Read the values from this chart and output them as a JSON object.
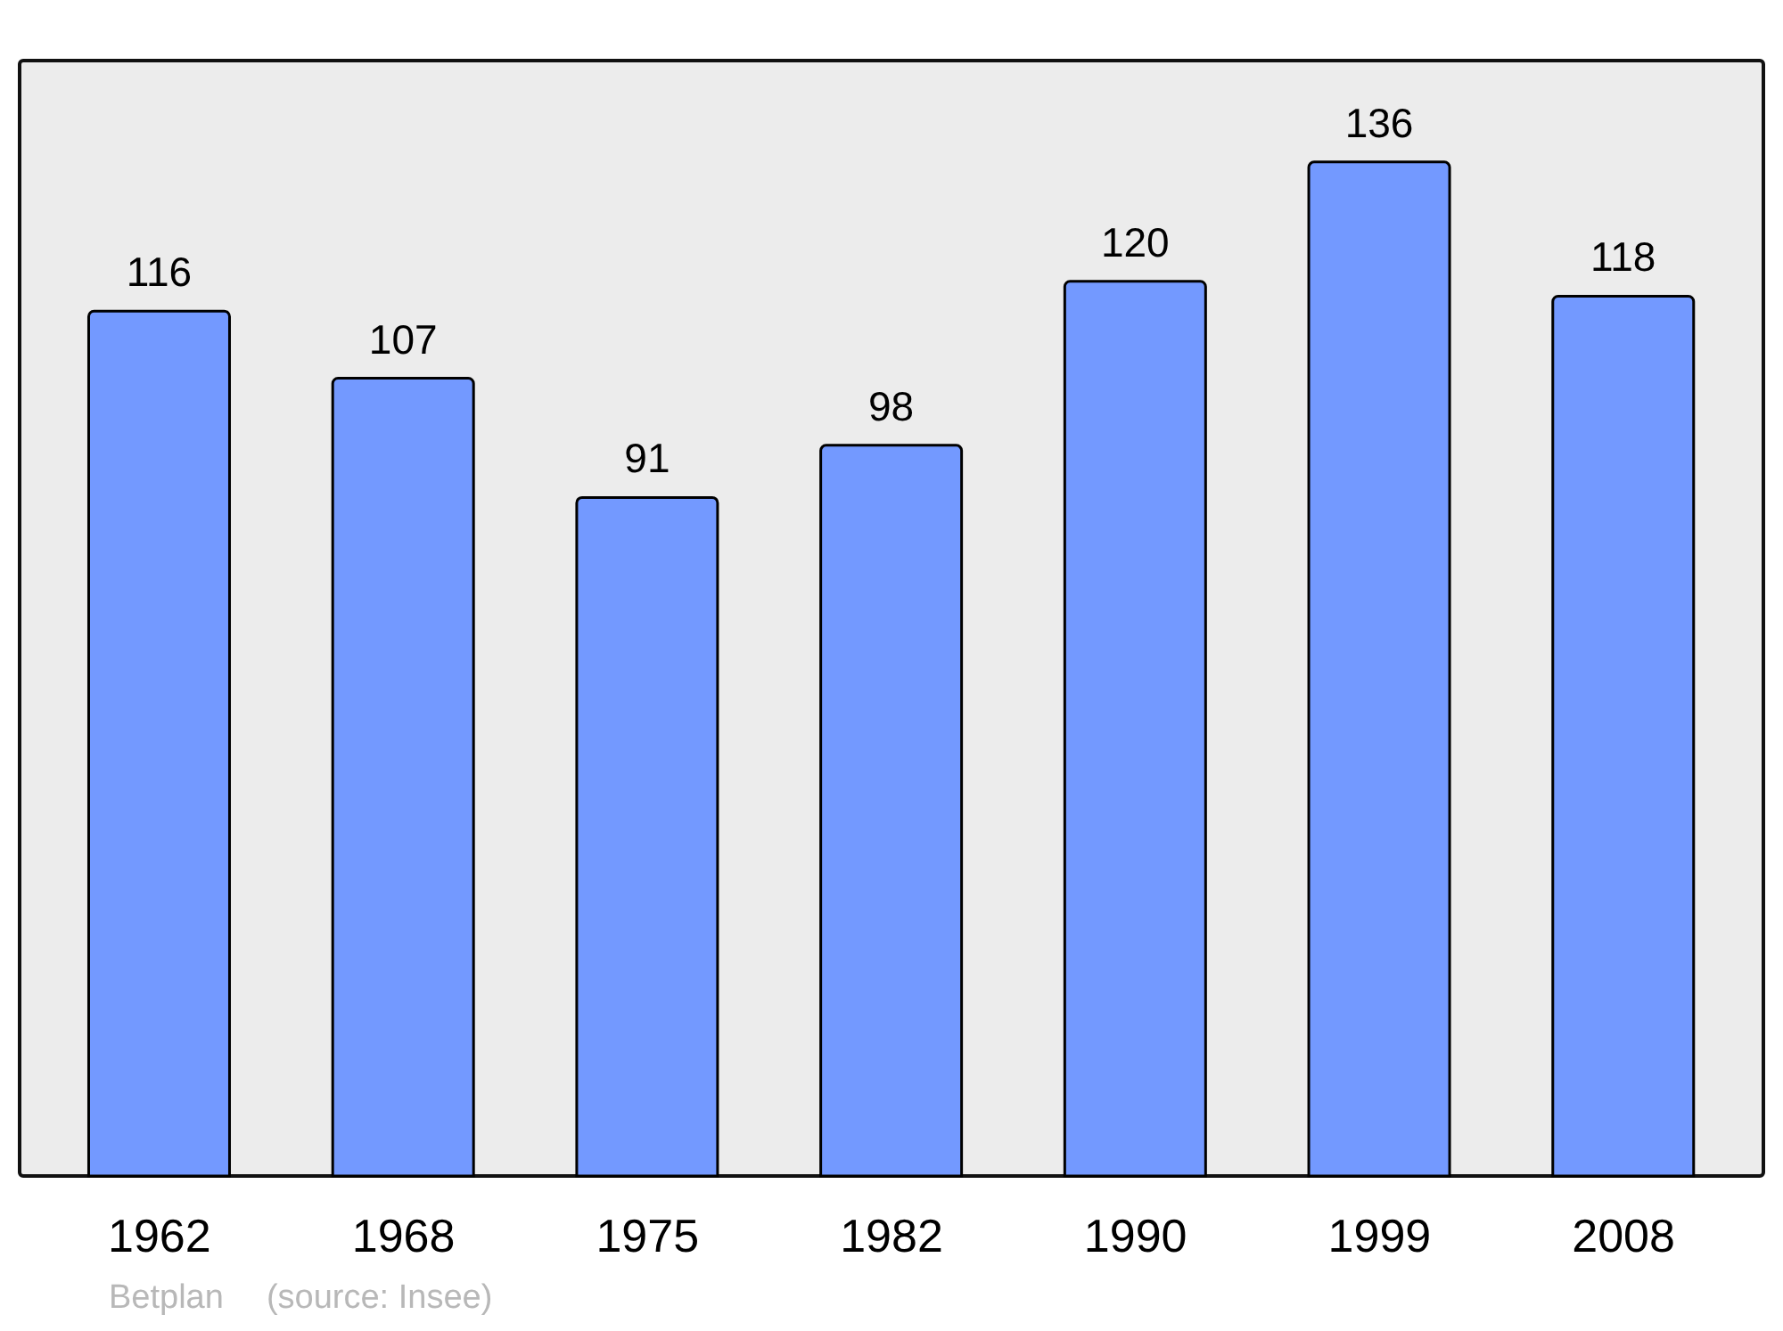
{
  "chart_data": {
    "type": "bar",
    "categories": [
      "1962",
      "1968",
      "1975",
      "1982",
      "1990",
      "1999",
      "2008"
    ],
    "values": [
      116,
      107,
      91,
      98,
      120,
      136,
      118
    ],
    "color": "#7399ff",
    "data_labels": true,
    "annotations": [
      "Betplan",
      "(source: Insee)"
    ]
  }
}
